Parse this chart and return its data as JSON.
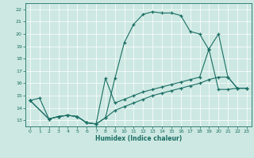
{
  "xlabel": "Humidex (Indice chaleur)",
  "bg_color": "#cde8e2",
  "line_color": "#1a6e64",
  "grid_color": "#b8d8d2",
  "xlim": [
    -0.5,
    23.5
  ],
  "ylim": [
    12.5,
    22.5
  ],
  "yticks": [
    13,
    14,
    15,
    16,
    17,
    18,
    19,
    20,
    21,
    22
  ],
  "xticks": [
    0,
    1,
    2,
    3,
    4,
    5,
    6,
    7,
    8,
    9,
    10,
    11,
    12,
    13,
    14,
    15,
    16,
    17,
    18,
    19,
    20,
    21,
    22,
    23
  ],
  "line1_x": [
    0,
    1,
    2,
    3,
    4,
    5,
    6,
    7,
    8,
    9,
    10,
    11,
    12,
    13,
    14,
    15,
    16,
    17,
    18,
    19,
    20,
    21,
    22,
    23
  ],
  "line1_y": [
    14.6,
    14.8,
    13.1,
    13.3,
    13.4,
    13.3,
    12.8,
    12.7,
    13.2,
    16.4,
    19.3,
    20.8,
    21.6,
    21.8,
    21.7,
    21.7,
    21.5,
    20.2,
    20.0,
    18.7,
    15.5,
    15.5,
    15.6,
    15.6
  ],
  "line2_x": [
    0,
    2,
    3,
    4,
    5,
    6,
    7,
    8,
    9,
    10,
    11,
    12,
    13,
    14,
    15,
    16,
    17,
    18,
    19,
    20,
    21,
    22,
    23
  ],
  "line2_y": [
    14.6,
    13.1,
    13.3,
    13.4,
    13.3,
    12.8,
    12.7,
    16.4,
    14.4,
    14.7,
    15.0,
    15.3,
    15.5,
    15.7,
    15.9,
    16.1,
    16.3,
    16.5,
    18.8,
    20.0,
    16.5,
    15.6,
    15.6
  ],
  "line3_x": [
    0,
    2,
    3,
    4,
    5,
    6,
    7,
    8,
    9,
    10,
    11,
    12,
    13,
    14,
    15,
    16,
    17,
    18,
    19,
    20,
    21,
    22,
    23
  ],
  "line3_y": [
    14.6,
    13.1,
    13.3,
    13.4,
    13.3,
    12.8,
    12.7,
    13.2,
    13.8,
    14.1,
    14.4,
    14.7,
    15.0,
    15.2,
    15.4,
    15.6,
    15.8,
    16.0,
    16.3,
    16.5,
    16.5,
    15.6,
    15.6
  ]
}
